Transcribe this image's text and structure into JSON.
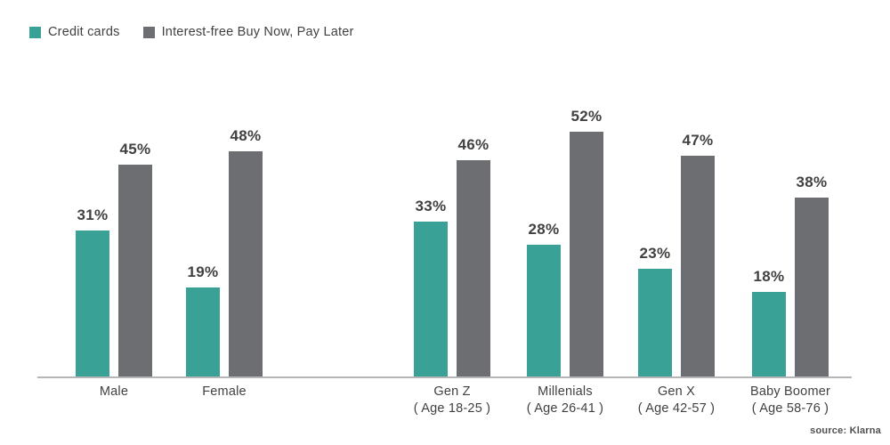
{
  "legend": {
    "items": [
      {
        "label": "Credit cards",
        "color": "#39a196"
      },
      {
        "label": "Interest-free Buy Now, Pay Later",
        "color": "#6d6e71"
      }
    ]
  },
  "source_label": "source: Klarna",
  "chart_data": {
    "type": "bar",
    "title": "",
    "xlabel": "",
    "ylabel": "",
    "value_suffix": "%",
    "ylim": [
      0,
      60
    ],
    "grid": false,
    "y_axis_visible": false,
    "legend_position": "top-left",
    "categories": [
      {
        "label": "Male",
        "sublabel": ""
      },
      {
        "label": "Female",
        "sublabel": ""
      },
      {
        "label": "Gen Z",
        "sublabel": "( Age 18-25 )"
      },
      {
        "label": "Millenials",
        "sublabel": "( Age 26-41 )"
      },
      {
        "label": "Gen X",
        "sublabel": "( Age 42-57 )"
      },
      {
        "label": "Baby Boomer",
        "sublabel": "( Age 58-76 )"
      }
    ],
    "series": [
      {
        "name": "Credit cards",
        "color": "#39a196",
        "values": [
          31,
          19,
          33,
          28,
          23,
          18
        ]
      },
      {
        "name": "Interest-free Buy Now, Pay Later",
        "color": "#6d6e71",
        "values": [
          45,
          48,
          46,
          52,
          47,
          38
        ]
      }
    ]
  }
}
